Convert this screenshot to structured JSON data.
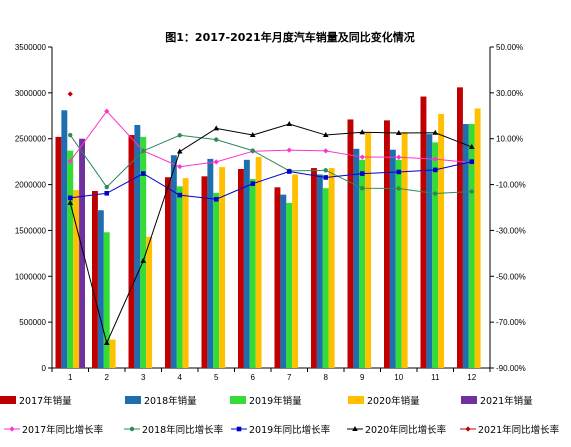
{
  "chart_data": {
    "type": "bar",
    "title": "图1：2017-2021年月度汽车销量及同比变化情况",
    "categories": [
      "1",
      "2",
      "3",
      "4",
      "5",
      "6",
      "7",
      "8",
      "9",
      "10",
      "11",
      "12"
    ],
    "y_left": {
      "min": 0,
      "max": 3500000,
      "step": 500000,
      "ticks": [
        "0",
        "500000",
        "1000000",
        "1500000",
        "2000000",
        "2500000",
        "3000000",
        "3500000"
      ]
    },
    "y_right": {
      "min": -90,
      "max": 50,
      "step": 20,
      "ticks": [
        "-90.00%",
        "-70.00%",
        "-50.00%",
        "-30.00%",
        "-10.00%",
        "10.00%",
        "30.00%",
        "50.00%"
      ]
    },
    "bar_series": [
      {
        "name": "2017年销量",
        "color": "#C00000",
        "values": [
          2520000,
          1930000,
          2540000,
          2080000,
          2090000,
          2170000,
          1970000,
          2180000,
          2710000,
          2700000,
          2960000,
          3060000
        ]
      },
      {
        "name": "2018年销量",
        "color": "#1F6FB0",
        "values": [
          2810000,
          1720000,
          2650000,
          2320000,
          2280000,
          2270000,
          1890000,
          2110000,
          2390000,
          2380000,
          2550000,
          2660000
        ]
      },
      {
        "name": "2019年销量",
        "color": "#33DD33",
        "values": [
          2370000,
          1480000,
          2520000,
          1980000,
          1910000,
          2060000,
          1800000,
          1960000,
          2270000,
          2270000,
          2460000,
          2660000
        ]
      },
      {
        "name": "2020年销量",
        "color": "#FFC000",
        "values": [
          1940000,
          310000,
          1430000,
          2070000,
          2190000,
          2300000,
          2110000,
          2180000,
          2570000,
          2570000,
          2770000,
          2830000
        ]
      },
      {
        "name": "2021年销量",
        "color": "#7030A0",
        "values": [
          2500000,
          null,
          null,
          null,
          null,
          null,
          null,
          null,
          null,
          null,
          null,
          null
        ]
      }
    ],
    "line_series": [
      {
        "name": "2017年同比增长率",
        "color": "#FF33CC",
        "marker": "diamond",
        "values": [
          0.2,
          22.0,
          4.7,
          -2.2,
          -0.1,
          4.5,
          5.0,
          4.7,
          2.0,
          1.9,
          1.1,
          -0.5
        ]
      },
      {
        "name": "2018年同比增长率",
        "color": "#2E8B57",
        "marker": "circle",
        "values": [
          11.6,
          -11.1,
          4.7,
          11.5,
          9.6,
          4.8,
          -4.0,
          -3.8,
          -11.6,
          -11.7,
          -13.9,
          -13.0
        ]
      },
      {
        "name": "2019年同比增长率",
        "color": "#0000CC",
        "marker": "square",
        "values": [
          -15.8,
          -13.8,
          -5.2,
          -14.6,
          -16.4,
          -9.6,
          -4.3,
          -6.9,
          -5.2,
          -4.5,
          -3.6,
          0.0
        ]
      },
      {
        "name": "2020年同比增长率",
        "color": "#000000",
        "marker": "triangle",
        "values": [
          -18.0,
          -79.1,
          -43.3,
          4.4,
          14.5,
          11.6,
          16.4,
          11.6,
          12.8,
          12.5,
          12.6,
          6.4
        ]
      },
      {
        "name": "2021年同比增长率",
        "color": "#C00000",
        "marker": "diamond",
        "values": [
          29.5,
          null,
          null,
          null,
          null,
          null,
          null,
          null,
          null,
          null,
          null,
          null
        ]
      }
    ],
    "legend_position": "bottom",
    "grid": false
  }
}
